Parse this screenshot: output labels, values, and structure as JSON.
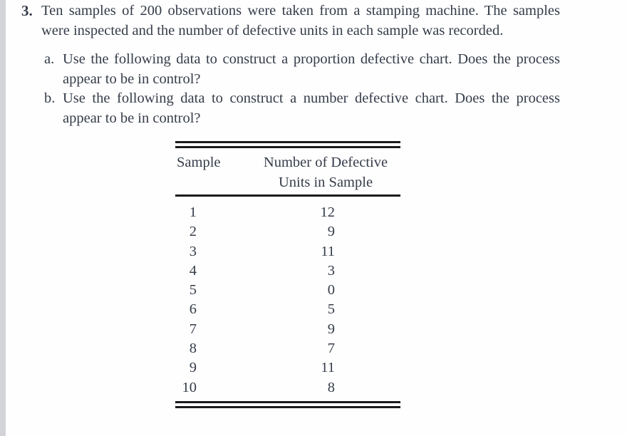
{
  "page": {
    "background_color": "#fefefe",
    "edge_strip_color": "#d2d4d7",
    "text_color": "#353c49",
    "rule_color": "#1b1b1d"
  },
  "problem": {
    "number": "3.",
    "statement": "Ten samples of 200 observations were taken from a stamping machine. The samples were inspected and the number of defective units in each sample was recorded.",
    "parts": [
      {
        "marker": "a.",
        "text": "Use the following data to construct a proportion defective chart. Does the process appear to be in control?"
      },
      {
        "marker": "b.",
        "text": "Use the following data to construct a number defective chart. Does the process appear to be in control?"
      }
    ]
  },
  "table": {
    "col1_header": "Sample",
    "col2_header": "Number of Defective\nUnits in Sample",
    "rows": [
      {
        "sample": "1",
        "defectives": "12"
      },
      {
        "sample": "2",
        "defectives": "9"
      },
      {
        "sample": "3",
        "defectives": "11"
      },
      {
        "sample": "4",
        "defectives": "3"
      },
      {
        "sample": "5",
        "defectives": "0"
      },
      {
        "sample": "6",
        "defectives": "5"
      },
      {
        "sample": "7",
        "defectives": "9"
      },
      {
        "sample": "8",
        "defectives": "7"
      },
      {
        "sample": "9",
        "defectives": "11"
      },
      {
        "sample": "10",
        "defectives": "8"
      }
    ]
  }
}
